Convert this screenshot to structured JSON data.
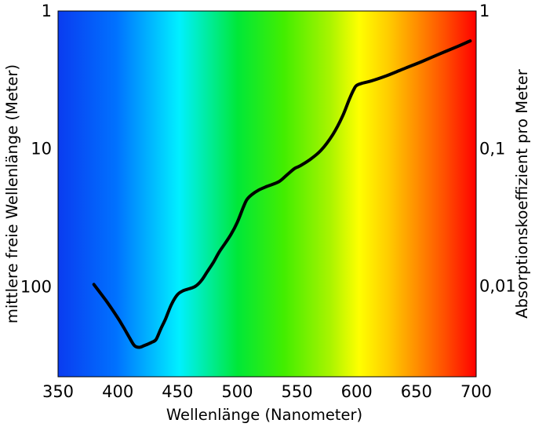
{
  "chart_data": {
    "type": "line",
    "title": "",
    "xlabel": "Wellenlänge (Nanometer)",
    "ylabel_left": "mittlere freie Wellenlänge (Meter)",
    "ylabel_right": "Absorptionskoeffizient pro Meter",
    "xlim": [
      350,
      700
    ],
    "x_ticks": [
      350,
      400,
      450,
      500,
      550,
      600,
      650,
      700
    ],
    "x_tick_labels": [
      "350",
      "400",
      "450",
      "500",
      "550",
      "600",
      "650",
      "700"
    ],
    "left_axis": {
      "scale": "log",
      "inverted": true,
      "range": [
        1,
        450
      ],
      "ticks": [
        1,
        10,
        100
      ],
      "tick_labels": [
        "1",
        "10",
        "100"
      ]
    },
    "right_axis": {
      "scale": "log",
      "range": [
        1,
        0.0022
      ],
      "ticks": [
        1,
        0.1,
        0.01
      ],
      "tick_labels": [
        "1",
        "0,1",
        "0,01"
      ]
    },
    "background": "visible spectrum gradient (blue to red)",
    "grid": false,
    "series": [
      {
        "color": "#000000",
        "x": [
          380,
          390,
          400,
          405,
          410,
          414,
          418,
          422,
          428,
          432,
          436,
          440,
          445,
          450,
          455,
          460,
          465,
          470,
          475,
          480,
          485,
          490,
          495,
          500,
          505,
          508,
          512,
          518,
          525,
          535,
          542,
          548,
          552,
          560,
          570,
          580,
          588,
          594,
          598,
          600,
          604,
          612,
          625,
          640,
          655,
          670,
          685,
          695
        ],
        "y": [
          0.0103,
          0.0079,
          0.0059,
          0.005,
          0.0042,
          0.0037,
          0.0036,
          0.0037,
          0.0039,
          0.0041,
          0.0049,
          0.0058,
          0.0074,
          0.0087,
          0.0093,
          0.0096,
          0.01,
          0.011,
          0.0128,
          0.0149,
          0.0178,
          0.0206,
          0.024,
          0.0291,
          0.0373,
          0.0425,
          0.0462,
          0.05,
          0.0532,
          0.0576,
          0.0649,
          0.0717,
          0.0745,
          0.0822,
          0.097,
          0.1265,
          0.1707,
          0.2305,
          0.2737,
          0.288,
          0.2977,
          0.3099,
          0.3386,
          0.382,
          0.431,
          0.49,
          0.555,
          0.6065
        ]
      }
    ]
  }
}
